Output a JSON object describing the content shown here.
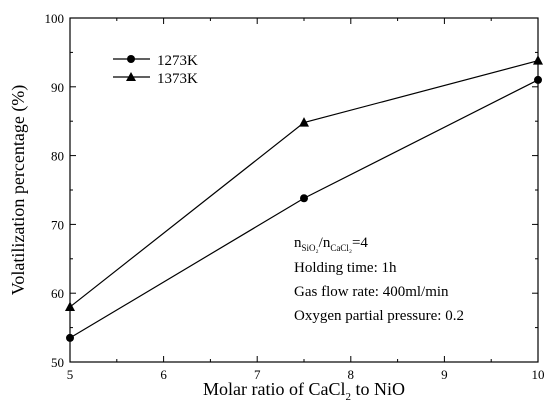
{
  "chart_data": {
    "type": "line",
    "title": "",
    "xlabel": "Molar ratio of CaCl₂ to NiO",
    "xlabel_parts": {
      "pre": "Molar ratio of CaCl",
      "sub": "2",
      "post": " to NiO"
    },
    "ylabel": "Volatilization percentage (%)",
    "xlim": [
      5,
      10
    ],
    "ylim": [
      50,
      100
    ],
    "xticks": [
      5,
      6,
      7,
      8,
      9,
      10
    ],
    "yticks": [
      50,
      60,
      70,
      80,
      90,
      100
    ],
    "x": [
      5,
      7.5,
      10
    ],
    "grid": false,
    "legend_position": "top-left",
    "series": [
      {
        "name": "1273K",
        "marker": "circle",
        "values": [
          53.5,
          73.8,
          91.0
        ]
      },
      {
        "name": "1373K",
        "marker": "triangle",
        "values": [
          58.0,
          84.8,
          93.8
        ]
      }
    ],
    "annotations": {
      "ratio": {
        "n1": "n",
        "s1": "SiO₂",
        "sep": "/n",
        "s2": "CaCl₂",
        "val": "=4"
      },
      "holding": "Holding time: 1h",
      "flow": "Gas flow rate: 400ml/min",
      "oxygen": "Oxygen partial pressure: 0.2"
    }
  }
}
